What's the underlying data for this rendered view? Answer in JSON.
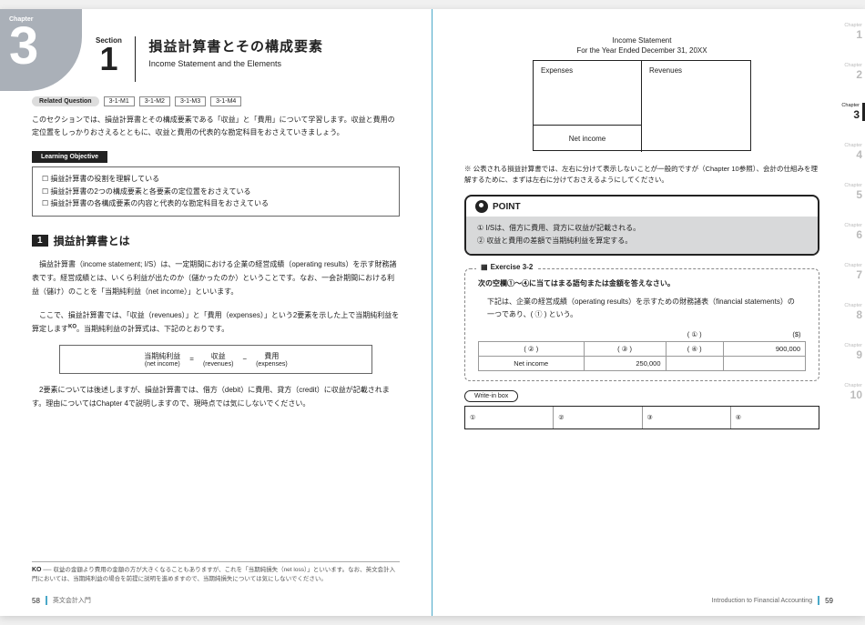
{
  "left": {
    "chapter_label": "Chapter",
    "chapter_num": "3",
    "section_label": "Section",
    "section_num": "1",
    "title_jp": "損益計算書とその構成要素",
    "title_en": "Income Statement and the Elements",
    "related_label": "Related Question",
    "related_q": [
      "3-1-M1",
      "3-1-M2",
      "3-1-M3",
      "3-1-M4"
    ],
    "intro": "このセクションでは、損益計算書とその構成要素である「収益」と「費用」について学習します。収益と費用の定位置をしっかりおさえるとともに、収益と費用の代表的な勘定科目をおさえていきましょう。",
    "lo_head": "Learning Objective",
    "lo_items": [
      "損益計算書の役割を理解している",
      "損益計算書の2つの構成要素と各要素の定位置をおさえている",
      "損益計算書の各構成要素の内容と代表的な勘定科目をおさえている"
    ],
    "h2_num": "1",
    "h2_text": "損益計算書とは",
    "p1": "損益計算書（income statement; I/S）は、一定期間における企業の経営成績（operating results）を示す財務諸表です。経営成績とは、いくら利益が出たのか（儲かったのか）ということです。なお、一会計期間における利益（儲け）のことを「当期純利益（net income）」といいます。",
    "p2a": "ここで、損益計算書では、「収益（revenues）」と「費用（expenses）」という2要素を示した上で当期純利益を算定します",
    "p2b": "。当期純利益の計算式は、下記のとおりです。",
    "ko": "KO",
    "eq": {
      "ni_jp": "当期純利益",
      "ni_en": "(net income)",
      "rev_jp": "収益",
      "rev_en": "(revenues)",
      "exp_jp": "費用",
      "exp_en": "(expenses)"
    },
    "p3": "2要素については後述しますが、損益計算書では、借方（debit）に費用、貸方（credit）に収益が記載されます。理由についてはChapter 4で説明しますので、現時点では気にしないでください。",
    "footnote_key": "KO",
    "footnote": "── 収益の金額より費用の金額の方が大きくなることもありますが、これを「当期純損失（net loss）」といいます。なお、英文会計入門においては、当期純利益の場合を前提に説明を進めますので、当期純損失については気にしないでください。",
    "page_num": "58",
    "book_title": "英文会計入門"
  },
  "right": {
    "is_title": "Income Statement",
    "is_sub": "For the Year Ended December 31, 20XX",
    "exp_label": "Expenses",
    "rev_label": "Revenues",
    "ni_label": "Net income",
    "note": "公表される損益計算書では、左右に分けて表示しないことが一般的ですが（Chapter 10参照）、会計の仕組みを理解するために、まずは左右に分けておさえるようにしてください。",
    "point_head": "POINT",
    "point_1": "① I/Sは、借方に費用、貸方に収益が記載される。",
    "point_2": "② 収益と費用の差額で当期純利益を算定する。",
    "ex_label": "Exercise 3-2",
    "ex_q": "次の空欄①〜④に当てはまる語句または金額を答えなさい。",
    "ex_desc": "下記は、企業の経営成績（operating results）を示すための財務諸表（financial statements）の一つであり、( ① ) という。",
    "ex_h_left": "( ① )",
    "ex_h_right": "($)",
    "ex_r1c1": "( ② )",
    "ex_r1c2": "( ③ )",
    "ex_r1c3": "( ④ )",
    "ex_r1c4": "900,000",
    "ex_r2c1": "Net income",
    "ex_r2c2": "250,000",
    "writein_label": "Write-in box",
    "writein_cells": [
      "①",
      "②",
      "③",
      "④"
    ],
    "page_num": "59",
    "book_title": "Introduction to Financial Accounting",
    "tabs": [
      {
        "label": "Chapter",
        "n": "1",
        "active": false
      },
      {
        "label": "Chapter",
        "n": "2",
        "active": false
      },
      {
        "label": "Chapter",
        "n": "3",
        "active": true
      },
      {
        "label": "Chapter",
        "n": "4",
        "active": false
      },
      {
        "label": "Chapter",
        "n": "5",
        "active": false
      },
      {
        "label": "Chapter",
        "n": "6",
        "active": false
      },
      {
        "label": "Chapter",
        "n": "7",
        "active": false
      },
      {
        "label": "Chapter",
        "n": "8",
        "active": false
      },
      {
        "label": "Chapter",
        "n": "9",
        "active": false
      },
      {
        "label": "Chapter",
        "n": "10",
        "active": false
      }
    ]
  }
}
